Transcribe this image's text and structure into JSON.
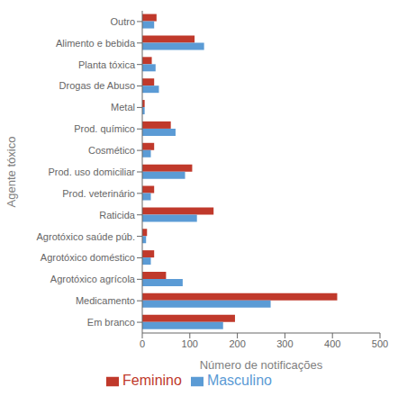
{
  "chart_data": {
    "type": "bar",
    "orientation": "horizontal",
    "categories": [
      "Outro",
      "Alimento e bebida",
      "Planta tóxica",
      "Drogas de Abuso",
      "Metal",
      "Prod. químico",
      "Cosmético",
      "Prod. uso domiciliar",
      "Prod. veterinário",
      "Raticida",
      "Agrotóxico saúde púb.",
      "Agrotóxico doméstico",
      "Agrotóxico agrícola",
      "Medicamento",
      "Em branco"
    ],
    "series": [
      {
        "name": "Feminino",
        "color": "#C0392B",
        "values": [
          30,
          110,
          20,
          25,
          5,
          60,
          25,
          105,
          25,
          150,
          10,
          25,
          50,
          410,
          195
        ]
      },
      {
        "name": "Masculino",
        "color": "#5B9BD5",
        "values": [
          25,
          130,
          28,
          35,
          5,
          70,
          18,
          90,
          18,
          115,
          8,
          18,
          85,
          270,
          170
        ]
      }
    ],
    "xlabel": "Número de notificações",
    "ylabel": "Agente tóxico",
    "xlim": [
      0,
      500
    ],
    "xticks": [
      0,
      100,
      200,
      300,
      400,
      500
    ],
    "grid": false,
    "legend": "bottom"
  }
}
